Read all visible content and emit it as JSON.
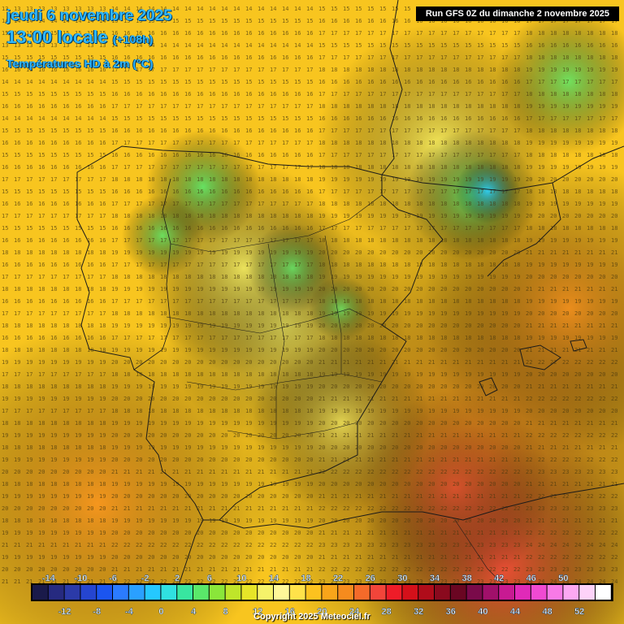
{
  "header": {
    "date_line": "jeudi 6 novembre 2025",
    "time_line": "13:00 locale",
    "lead_time": "(+108h)",
    "parameter": "Températures HD à 2m (°C)",
    "run_info": "Run GFS 0Z du dimanche 2 novembre 2025"
  },
  "legend": {
    "top_labels": [
      "-14",
      "-10",
      "-6",
      "-2",
      "2",
      "6",
      "10",
      "14",
      "18",
      "22",
      "26",
      "30",
      "34",
      "38",
      "42",
      "46",
      "50"
    ],
    "bottom_labels": [
      "-12",
      "-8",
      "-4",
      "0",
      "4",
      "8",
      "12",
      "16",
      "20",
      "24",
      "28",
      "32",
      "36",
      "40",
      "44",
      "48",
      "52"
    ],
    "colors": [
      "#1a1a4a",
      "#262a80",
      "#2b3aa8",
      "#2545d0",
      "#1b55f0",
      "#2b7bff",
      "#2aa0ff",
      "#25c8ff",
      "#30e0e0",
      "#38e6a0",
      "#5ae86a",
      "#8ae63a",
      "#bfe52a",
      "#e6e528",
      "#f5f26a",
      "#fff799",
      "#ffe24a",
      "#fcc21f",
      "#f8a51a",
      "#f58b1e",
      "#f46a2a",
      "#f2453a",
      "#ee1c28",
      "#d4101a",
      "#b00c1a",
      "#8a0a1e",
      "#6a0622",
      "#7a0a4a",
      "#a0106a",
      "#c81a92",
      "#e02ab8",
      "#f04ad2",
      "#f87ae6",
      "#fca8f2",
      "#fdd2f9",
      "#ffffff"
    ]
  },
  "copyright": "Copyright 2025 Meteociel.fr",
  "map": {
    "hot_color": "#f2453a",
    "warm_color": "#f58b1e",
    "mild_color": "#f8c51f",
    "cool_color": "#f5f26a",
    "cold_color": "#5ae86a",
    "coldest_color": "#2ad0ff"
  }
}
